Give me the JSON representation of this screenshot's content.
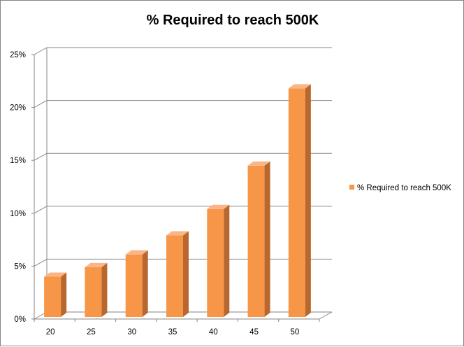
{
  "chart_data": {
    "type": "bar",
    "title": "% Required to reach 500K",
    "categories": [
      "20",
      "25",
      "30",
      "35",
      "40",
      "45",
      "50"
    ],
    "series": [
      {
        "name": "% Required to reach 500K",
        "values": [
          4.0,
          4.9,
          6.1,
          7.9,
          10.4,
          14.5,
          21.8
        ],
        "color": "#f79646"
      }
    ],
    "ylim": [
      0,
      25
    ],
    "yticks": [
      0,
      5,
      10,
      15,
      20,
      25
    ],
    "ytick_labels": [
      "0%",
      "5%",
      "10%",
      "15%",
      "20%",
      "25%"
    ],
    "grid": true,
    "legend_position": "right",
    "style": "3d-column"
  }
}
